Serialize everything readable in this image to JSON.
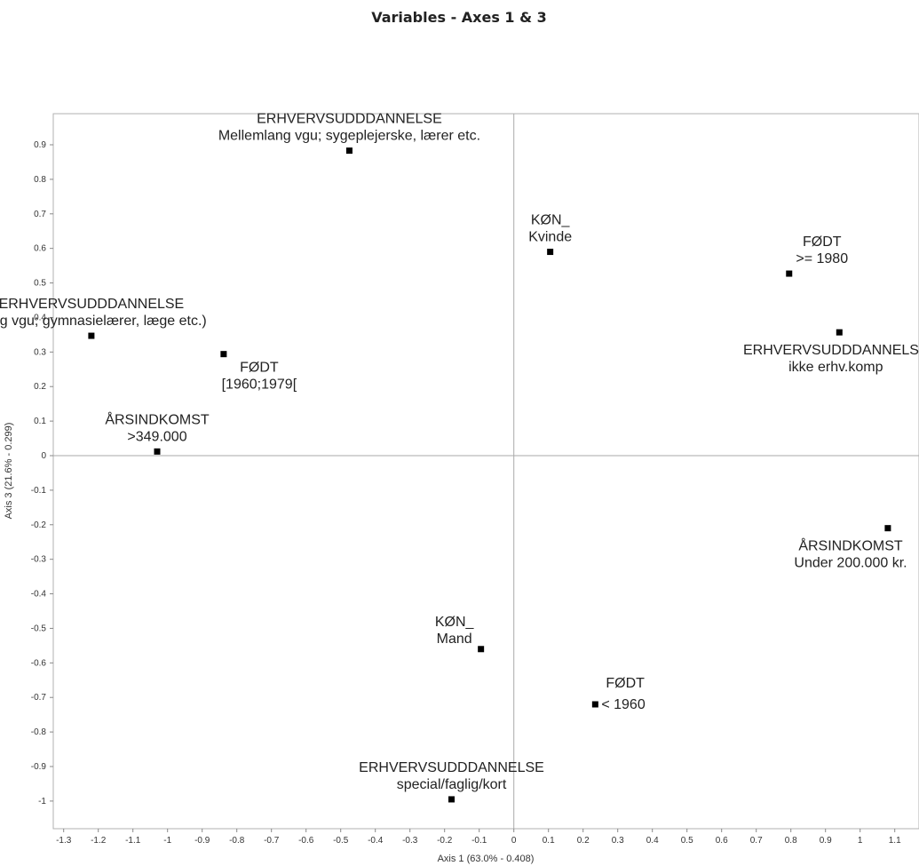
{
  "chart_data": {
    "type": "scatter",
    "title": "Variables - Axes 1 & 3",
    "xlabel": "Axis 1 (63.0% - 0.408)",
    "ylabel": "Axis 3 (21.6% - 0.299)",
    "xlim": [
      -1.33,
      1.17
    ],
    "ylim": [
      -1.08,
      0.99
    ],
    "x_ticks": [
      "-1.3",
      "-1.2",
      "-1.1",
      "-1",
      "-0.9",
      "-0.8",
      "-0.7",
      "-0.6",
      "-0.5",
      "-0.4",
      "-0.3",
      "-0.2",
      "-0.1",
      "0",
      "0.1",
      "0.2",
      "0.3",
      "0.4",
      "0.5",
      "0.6",
      "0.7",
      "0.8",
      "0.9",
      "1",
      "1.1"
    ],
    "y_ticks": [
      "0.9",
      "0.8",
      "0.7",
      "0.6",
      "0.5",
      "0.4",
      "0.3",
      "0.2",
      "0.1",
      "0",
      "-0.1",
      "-0.2",
      "-0.3",
      "-0.4",
      "-0.5",
      "-0.6",
      "-0.7",
      "-0.8",
      "-0.9",
      "-1"
    ],
    "grid": false,
    "reference_lines": {
      "x": 0,
      "y": 0
    },
    "points": [
      {
        "x": -0.475,
        "y": 0.883,
        "line1": "ERHVERVSUDDDANNELSE",
        "line2": "Mellemlang vgu; sygeplejerske, lærer etc.",
        "anchor": "above"
      },
      {
        "x": 0.105,
        "y": 0.59,
        "line1": "KØN_",
        "line2": "Kvinde",
        "anchor": "above"
      },
      {
        "x": 0.795,
        "y": 0.527,
        "line1": "FØDT",
        "line2": ">= 1980",
        "anchor": "above-right"
      },
      {
        "x": 0.94,
        "y": 0.357,
        "line1": "ERHVERVSUDDDANNELSE",
        "line2": "ikke erhv.komp",
        "anchor": "below"
      },
      {
        "x": -1.22,
        "y": 0.347,
        "line1": "ERHVERVSUDDDANNELSE",
        "line2": "Lang vgu; gymnasielærer, læge etc.)",
        "anchor": "above"
      },
      {
        "x": -0.838,
        "y": 0.294,
        "line1": "FØDT",
        "line2": "[1960;1979[",
        "anchor": "below-right"
      },
      {
        "x": -1.03,
        "y": 0.012,
        "line1": "ÅRSINDKOMST",
        "line2": ">349.000",
        "anchor": "above"
      },
      {
        "x": 1.08,
        "y": -0.21,
        "line1": "ÅRSINDKOMST",
        "line2": "Under 200.000 kr.",
        "anchor": "below"
      },
      {
        "x": -0.095,
        "y": -0.56,
        "line1": "KØN_",
        "line2": "Mand",
        "anchor": "above-left"
      },
      {
        "x": 0.235,
        "y": -0.72,
        "line1": "FØDT",
        "line2": "< 1960",
        "anchor": "right"
      },
      {
        "x": -0.18,
        "y": -0.995,
        "line1": "ERHVERVSUDDDANNELSE",
        "line2": "special/faglig/kort",
        "anchor": "above"
      }
    ]
  }
}
